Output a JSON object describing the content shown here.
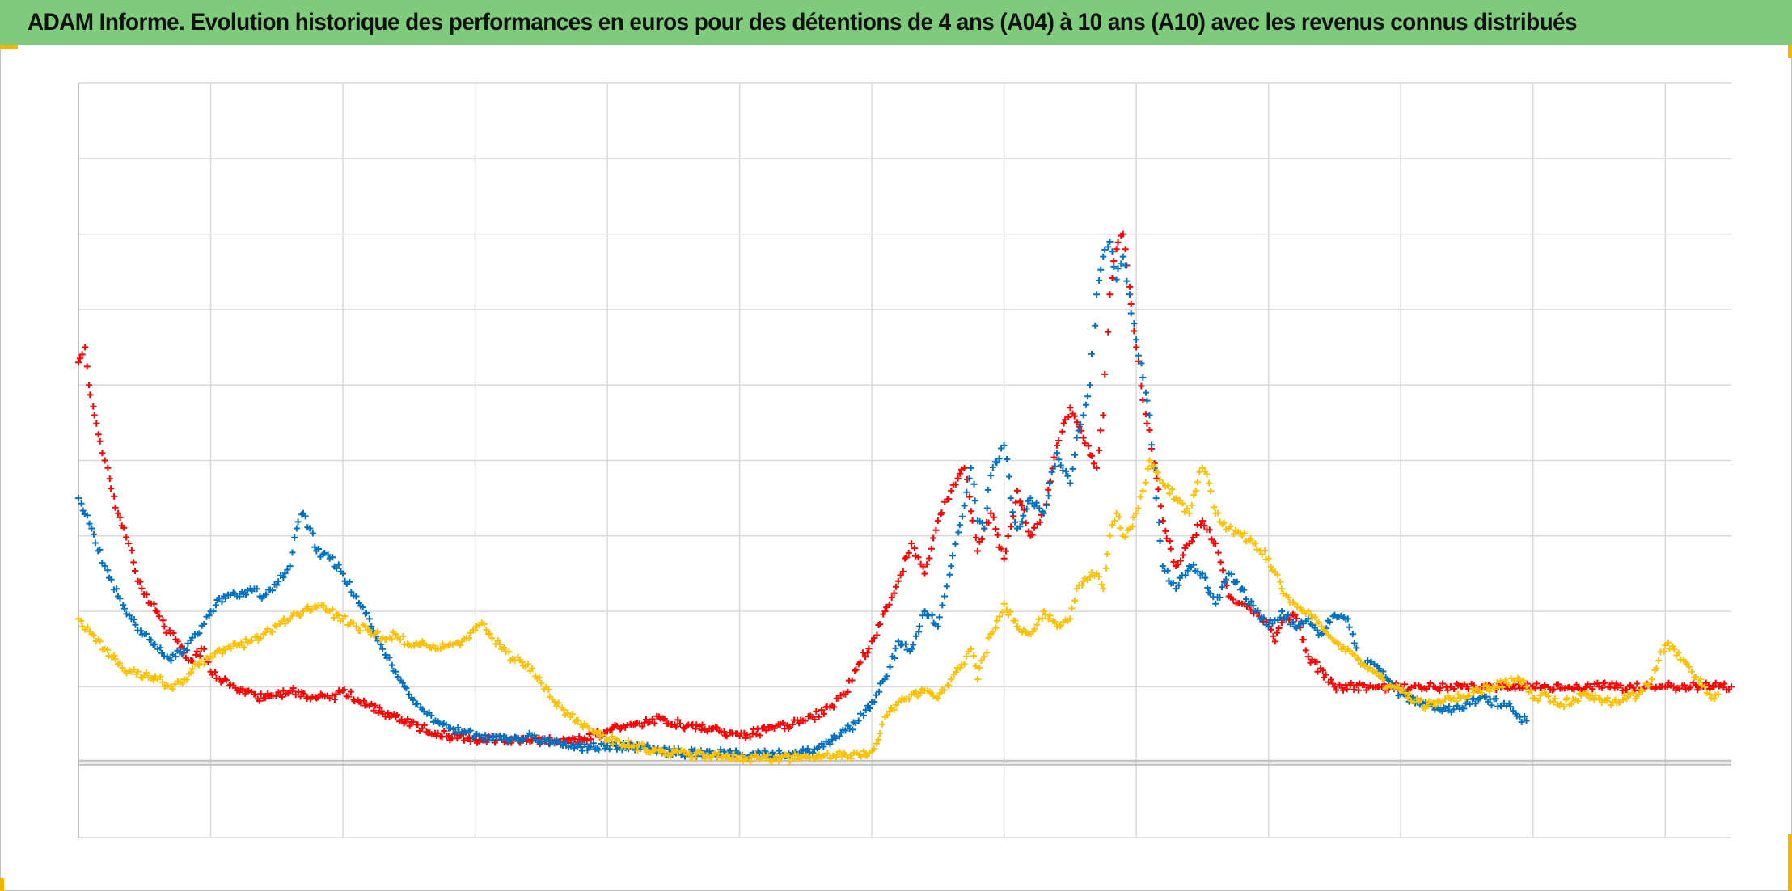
{
  "title": "ADAM Informe. Evolution historique des performances en euros pour des détentions de 4 ans (A04) à 10 ans (A10) avec les revenus connus distribués",
  "colors": {
    "title_bg": "#7ecb7c",
    "grid": "#d9d9d9",
    "axis": "#bfbfbf",
    "corner_marks": "#f2b600"
  },
  "chart_data": {
    "type": "scatter",
    "marker": "plus",
    "title": "ADAM Informe. Evolution historique des performances en euros pour des détentions de 4 ans (A04) à 10 ans (A10) avec les revenus connus distribués",
    "xlabel": "",
    "ylabel": "",
    "tick_labels_visible": false,
    "legend": "none",
    "grid": true,
    "grid_columns": 12.5,
    "grid_rows": 10,
    "xlim": [
      0,
      12.5
    ],
    "ylim": [
      -1,
      9
    ],
    "baseline_y": 0,
    "series": [
      {
        "color": "#ff0000",
        "points": [
          [
            0,
            5.3
          ],
          [
            0.05,
            5.5
          ],
          [
            0.08,
            5.0
          ],
          [
            0.12,
            4.6
          ],
          [
            0.2,
            4.0
          ],
          [
            0.3,
            3.3
          ],
          [
            0.38,
            2.9
          ],
          [
            0.45,
            2.4
          ],
          [
            0.55,
            2.1
          ],
          [
            0.65,
            1.8
          ],
          [
            0.75,
            1.6
          ],
          [
            0.85,
            1.35
          ],
          [
            0.95,
            1.5
          ],
          [
            1.0,
            1.2
          ],
          [
            1.2,
            0.95
          ],
          [
            1.4,
            0.85
          ],
          [
            1.6,
            0.95
          ],
          [
            1.8,
            0.85
          ],
          [
            1.9,
            0.85
          ],
          [
            2.0,
            0.95
          ],
          [
            2.2,
            0.75
          ],
          [
            2.4,
            0.6
          ],
          [
            2.6,
            0.45
          ],
          [
            2.8,
            0.35
          ],
          [
            3.0,
            0.3
          ],
          [
            3.2,
            0.3
          ],
          [
            3.4,
            0.3
          ],
          [
            3.6,
            0.28
          ],
          [
            3.8,
            0.3
          ],
          [
            4.0,
            0.42
          ],
          [
            4.2,
            0.5
          ],
          [
            4.4,
            0.58
          ],
          [
            4.6,
            0.48
          ],
          [
            4.8,
            0.45
          ],
          [
            5.0,
            0.35
          ],
          [
            5.2,
            0.42
          ],
          [
            5.4,
            0.5
          ],
          [
            5.55,
            0.6
          ],
          [
            5.7,
            0.75
          ],
          [
            5.8,
            0.9
          ],
          [
            5.9,
            1.3
          ],
          [
            6.0,
            1.6
          ],
          [
            6.1,
            2.0
          ],
          [
            6.2,
            2.4
          ],
          [
            6.3,
            2.9
          ],
          [
            6.4,
            2.5
          ],
          [
            6.5,
            3.2
          ],
          [
            6.6,
            3.6
          ],
          [
            6.7,
            3.9
          ],
          [
            6.8,
            2.8
          ],
          [
            6.9,
            3.3
          ],
          [
            7.0,
            2.7
          ],
          [
            7.1,
            3.6
          ],
          [
            7.2,
            3.0
          ],
          [
            7.3,
            3.3
          ],
          [
            7.4,
            4.2
          ],
          [
            7.5,
            4.7
          ],
          [
            7.6,
            4.3
          ],
          [
            7.7,
            3.9
          ],
          [
            7.75,
            4.6
          ],
          [
            7.8,
            6.2
          ],
          [
            7.85,
            6.8
          ],
          [
            7.9,
            7.0
          ],
          [
            7.95,
            6.3
          ],
          [
            8.0,
            5.5
          ],
          [
            8.05,
            4.8
          ],
          [
            8.1,
            4.4
          ],
          [
            8.2,
            3.2
          ],
          [
            8.3,
            2.6
          ],
          [
            8.4,
            2.9
          ],
          [
            8.5,
            3.2
          ],
          [
            8.6,
            2.9
          ],
          [
            8.7,
            2.2
          ],
          [
            8.8,
            2.1
          ],
          [
            8.9,
            2.0
          ],
          [
            9.0,
            1.8
          ],
          [
            9.05,
            1.6
          ],
          [
            9.1,
            1.85
          ],
          [
            9.2,
            1.95
          ],
          [
            9.3,
            1.4
          ],
          [
            9.5,
            1.0
          ],
          [
            10.0,
            1.0
          ],
          [
            10.5,
            1.0
          ],
          [
            11.0,
            1.0
          ],
          [
            11.5,
            1.0
          ],
          [
            12.0,
            1.0
          ],
          [
            12.5,
            1.0
          ]
        ]
      },
      {
        "color": "#0070c0",
        "points": [
          [
            0,
            3.5
          ],
          [
            0.1,
            3.1
          ],
          [
            0.2,
            2.6
          ],
          [
            0.3,
            2.2
          ],
          [
            0.4,
            1.9
          ],
          [
            0.5,
            1.7
          ],
          [
            0.6,
            1.5
          ],
          [
            0.7,
            1.35
          ],
          [
            0.8,
            1.5
          ],
          [
            0.9,
            1.7
          ],
          [
            1.0,
            2.0
          ],
          [
            1.1,
            2.2
          ],
          [
            1.2,
            2.2
          ],
          [
            1.3,
            2.3
          ],
          [
            1.4,
            2.2
          ],
          [
            1.5,
            2.35
          ],
          [
            1.6,
            2.6
          ],
          [
            1.65,
            3.1
          ],
          [
            1.7,
            3.3
          ],
          [
            1.75,
            3.1
          ],
          [
            1.8,
            2.8
          ],
          [
            1.9,
            2.7
          ],
          [
            2.0,
            2.5
          ],
          [
            2.1,
            2.2
          ],
          [
            2.2,
            1.9
          ],
          [
            2.3,
            1.5
          ],
          [
            2.4,
            1.2
          ],
          [
            2.5,
            0.9
          ],
          [
            2.6,
            0.7
          ],
          [
            2.7,
            0.55
          ],
          [
            2.8,
            0.45
          ],
          [
            2.9,
            0.4
          ],
          [
            3.0,
            0.35
          ],
          [
            3.2,
            0.3
          ],
          [
            3.4,
            0.35
          ],
          [
            3.6,
            0.25
          ],
          [
            3.8,
            0.2
          ],
          [
            4.0,
            0.22
          ],
          [
            4.2,
            0.2
          ],
          [
            4.4,
            0.15
          ],
          [
            4.6,
            0.12
          ],
          [
            4.8,
            0.12
          ],
          [
            5.0,
            0.1
          ],
          [
            5.2,
            0.1
          ],
          [
            5.4,
            0.12
          ],
          [
            5.5,
            0.15
          ],
          [
            5.6,
            0.2
          ],
          [
            5.7,
            0.3
          ],
          [
            5.8,
            0.42
          ],
          [
            5.9,
            0.55
          ],
          [
            6.0,
            0.8
          ],
          [
            6.1,
            1.1
          ],
          [
            6.2,
            1.6
          ],
          [
            6.3,
            1.5
          ],
          [
            6.4,
            2.0
          ],
          [
            6.5,
            1.8
          ],
          [
            6.55,
            2.2
          ],
          [
            6.6,
            2.6
          ],
          [
            6.7,
            3.4
          ],
          [
            6.75,
            3.9
          ],
          [
            6.8,
            3.2
          ],
          [
            6.85,
            3.1
          ],
          [
            6.9,
            3.8
          ],
          [
            7.0,
            4.2
          ],
          [
            7.05,
            3.5
          ],
          [
            7.1,
            3.1
          ],
          [
            7.2,
            3.5
          ],
          [
            7.3,
            3.3
          ],
          [
            7.4,
            4.1
          ],
          [
            7.5,
            3.7
          ],
          [
            7.55,
            4.3
          ],
          [
            7.6,
            4.6
          ],
          [
            7.65,
            5.0
          ],
          [
            7.7,
            6.2
          ],
          [
            7.75,
            6.7
          ],
          [
            7.8,
            6.9
          ],
          [
            7.85,
            6.4
          ],
          [
            7.9,
            6.7
          ],
          [
            7.95,
            6.2
          ],
          [
            8.0,
            5.6
          ],
          [
            8.05,
            5.1
          ],
          [
            8.1,
            4.6
          ],
          [
            8.15,
            3.5
          ],
          [
            8.2,
            2.6
          ],
          [
            8.3,
            2.3
          ],
          [
            8.4,
            2.6
          ],
          [
            8.5,
            2.5
          ],
          [
            8.6,
            2.1
          ],
          [
            8.7,
            2.5
          ],
          [
            8.8,
            2.3
          ],
          [
            8.9,
            2.0
          ],
          [
            9.0,
            1.8
          ],
          [
            9.1,
            2.0
          ],
          [
            9.2,
            1.8
          ],
          [
            9.3,
            1.9
          ],
          [
            9.4,
            1.7
          ],
          [
            9.5,
            1.95
          ],
          [
            9.6,
            1.9
          ],
          [
            9.7,
            1.3
          ],
          [
            9.8,
            1.3
          ],
          [
            9.9,
            1.1
          ],
          [
            10.0,
            0.9
          ],
          [
            10.2,
            0.75
          ],
          [
            10.4,
            0.7
          ],
          [
            10.6,
            0.85
          ],
          [
            10.8,
            0.75
          ],
          [
            10.9,
            0.6
          ],
          [
            10.95,
            0.55
          ]
        ]
      },
      {
        "color": "#ffc000",
        "points": [
          [
            0,
            1.9
          ],
          [
            0.1,
            1.7
          ],
          [
            0.2,
            1.5
          ],
          [
            0.3,
            1.3
          ],
          [
            0.4,
            1.2
          ],
          [
            0.5,
            1.15
          ],
          [
            0.6,
            1.1
          ],
          [
            0.7,
            1.0
          ],
          [
            0.8,
            1.1
          ],
          [
            0.9,
            1.3
          ],
          [
            1.0,
            1.4
          ],
          [
            1.1,
            1.5
          ],
          [
            1.2,
            1.55
          ],
          [
            1.3,
            1.6
          ],
          [
            1.4,
            1.7
          ],
          [
            1.5,
            1.8
          ],
          [
            1.6,
            1.9
          ],
          [
            1.7,
            2.0
          ],
          [
            1.8,
            2.05
          ],
          [
            1.9,
            2.0
          ],
          [
            2.0,
            1.9
          ],
          [
            2.1,
            1.8
          ],
          [
            2.2,
            1.75
          ],
          [
            2.3,
            1.65
          ],
          [
            2.4,
            1.7
          ],
          [
            2.5,
            1.55
          ],
          [
            2.6,
            1.6
          ],
          [
            2.7,
            1.5
          ],
          [
            2.8,
            1.55
          ],
          [
            2.9,
            1.6
          ],
          [
            3.0,
            1.75
          ],
          [
            3.05,
            1.85
          ],
          [
            3.1,
            1.7
          ],
          [
            3.2,
            1.5
          ],
          [
            3.3,
            1.35
          ],
          [
            3.4,
            1.3
          ],
          [
            3.5,
            1.05
          ],
          [
            3.6,
            0.8
          ],
          [
            3.7,
            0.65
          ],
          [
            3.8,
            0.5
          ],
          [
            3.9,
            0.4
          ],
          [
            4.0,
            0.3
          ],
          [
            4.2,
            0.22
          ],
          [
            4.4,
            0.15
          ],
          [
            4.6,
            0.1
          ],
          [
            4.8,
            0.1
          ],
          [
            5.0,
            0.05
          ],
          [
            5.2,
            0.05
          ],
          [
            5.4,
            0.05
          ],
          [
            5.6,
            0.1
          ],
          [
            5.8,
            0.1
          ],
          [
            5.95,
            0.1
          ],
          [
            6.0,
            0.15
          ],
          [
            6.05,
            0.3
          ],
          [
            6.1,
            0.6
          ],
          [
            6.2,
            0.8
          ],
          [
            6.3,
            0.9
          ],
          [
            6.4,
            0.95
          ],
          [
            6.5,
            0.85
          ],
          [
            6.6,
            1.1
          ],
          [
            6.7,
            1.3
          ],
          [
            6.75,
            1.5
          ],
          [
            6.8,
            1.1
          ],
          [
            6.85,
            1.4
          ],
          [
            6.9,
            1.7
          ],
          [
            7.0,
            2.1
          ],
          [
            7.1,
            1.8
          ],
          [
            7.2,
            1.7
          ],
          [
            7.3,
            2.0
          ],
          [
            7.4,
            1.8
          ],
          [
            7.5,
            1.9
          ],
          [
            7.55,
            2.3
          ],
          [
            7.6,
            2.4
          ],
          [
            7.7,
            2.5
          ],
          [
            7.75,
            2.3
          ],
          [
            7.8,
            3.0
          ],
          [
            7.85,
            3.3
          ],
          [
            7.9,
            3.0
          ],
          [
            7.95,
            3.1
          ],
          [
            8.0,
            3.3
          ],
          [
            8.05,
            3.6
          ],
          [
            8.1,
            4.0
          ],
          [
            8.2,
            3.7
          ],
          [
            8.3,
            3.5
          ],
          [
            8.4,
            3.3
          ],
          [
            8.45,
            3.6
          ],
          [
            8.5,
            3.9
          ],
          [
            8.55,
            3.7
          ],
          [
            8.6,
            3.3
          ],
          [
            8.7,
            3.1
          ],
          [
            8.8,
            3.0
          ],
          [
            8.9,
            2.9
          ],
          [
            9.0,
            2.7
          ],
          [
            9.1,
            2.3
          ],
          [
            9.2,
            2.1
          ],
          [
            9.3,
            2.0
          ],
          [
            9.4,
            1.8
          ],
          [
            9.5,
            1.6
          ],
          [
            9.6,
            1.5
          ],
          [
            9.7,
            1.3
          ],
          [
            9.8,
            1.2
          ],
          [
            9.9,
            1.0
          ],
          [
            10.0,
            0.95
          ],
          [
            10.1,
            0.8
          ],
          [
            10.2,
            0.75
          ],
          [
            10.4,
            0.85
          ],
          [
            10.6,
            0.95
          ],
          [
            10.8,
            1.05
          ],
          [
            10.9,
            1.1
          ],
          [
            10.95,
            1.0
          ],
          [
            11.0,
            0.85
          ],
          [
            11.1,
            0.9
          ],
          [
            11.2,
            0.75
          ],
          [
            11.4,
            0.9
          ],
          [
            11.6,
            0.8
          ],
          [
            11.8,
            0.9
          ],
          [
            11.9,
            1.1
          ],
          [
            11.95,
            1.35
          ],
          [
            12.0,
            1.55
          ],
          [
            12.1,
            1.45
          ],
          [
            12.2,
            1.2
          ],
          [
            12.3,
            1.0
          ],
          [
            12.35,
            0.85
          ],
          [
            12.4,
            0.9
          ]
        ]
      }
    ]
  }
}
